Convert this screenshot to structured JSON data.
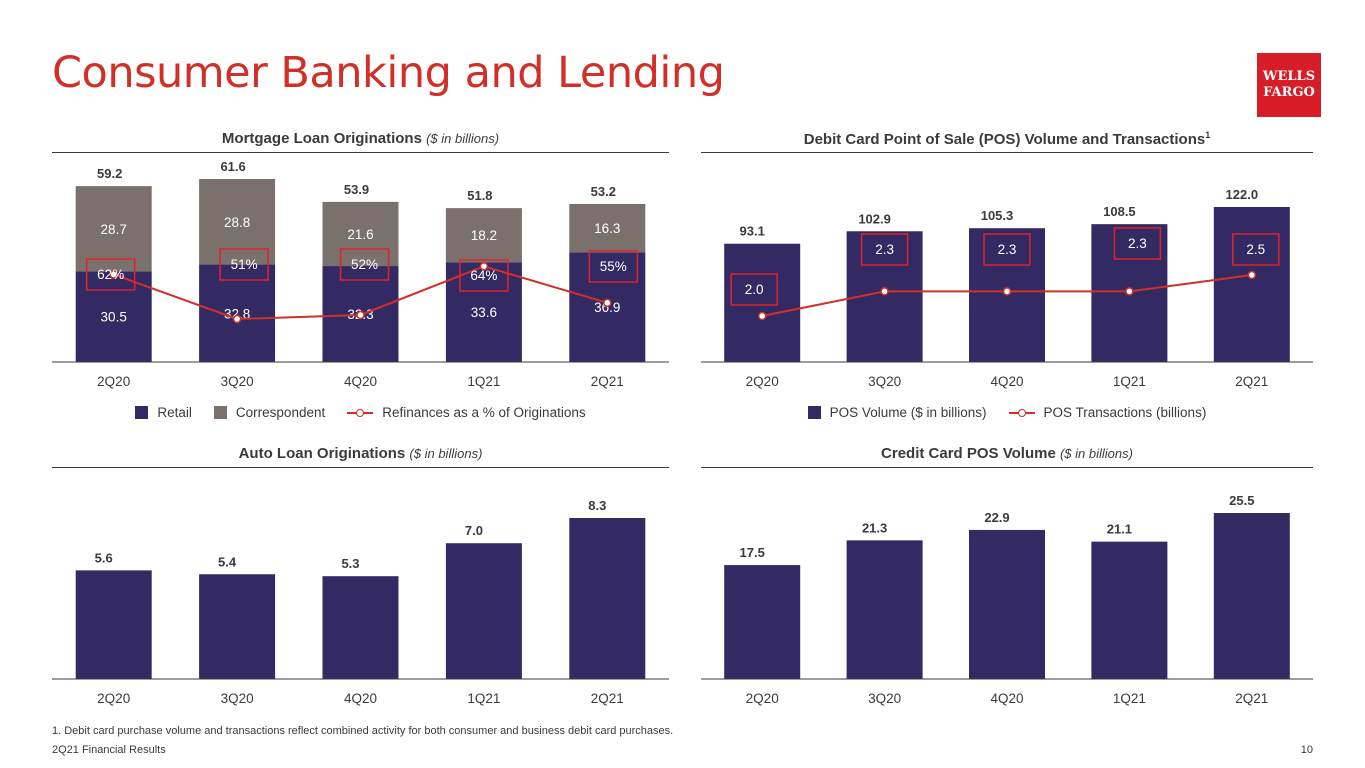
{
  "page": {
    "title": "Consumer Banking and Lending",
    "logo_line1": "WELLS",
    "logo_line2": "FARGO",
    "footnote": "1. Debit card purchase volume and transactions reflect combined activity for both consumer and business debit card purchases.",
    "footer_left": "2Q21 Financial Results",
    "page_number": "10"
  },
  "colors": {
    "retail": "#332a63",
    "correspondent": "#7a706c",
    "line": "#d03027",
    "highlight_box": "#e0232b",
    "title": "#d03027",
    "logo": "#d71e28"
  },
  "chart_data": [
    {
      "id": "mortgage",
      "type": "bar",
      "stacked": true,
      "title": "Mortgage Loan Originations",
      "title_unit": "($ in billions)",
      "categories": [
        "2Q20",
        "3Q20",
        "4Q20",
        "1Q21",
        "2Q21"
      ],
      "series": [
        {
          "name": "Retail",
          "values": [
            30.5,
            32.8,
            32.3,
            33.6,
            36.9
          ],
          "labels": [
            "30.5",
            "32.8",
            "32.3",
            "33.6",
            "36.9"
          ]
        },
        {
          "name": "Correspondent",
          "values": [
            28.7,
            28.8,
            21.6,
            18.2,
            16.3
          ],
          "labels": [
            "28.7",
            "28.8",
            "21.6",
            "18.2",
            "16.3"
          ]
        }
      ],
      "totals": [
        "59.2",
        "61.6",
        "53.9",
        "51.8",
        "53.2"
      ],
      "line": {
        "name": "Refinances as a % of Originations",
        "values": [
          62,
          51,
          52,
          64,
          55
        ],
        "labels": [
          "62%",
          "51%",
          "52%",
          "64%",
          "55%"
        ]
      },
      "legend_position": "bottom",
      "grid": false
    },
    {
      "id": "debit",
      "type": "bar",
      "title": "Debit Card Point of Sale (POS) Volume and Transactions",
      "title_superscript": "1",
      "categories": [
        "2Q20",
        "3Q20",
        "4Q20",
        "1Q21",
        "2Q21"
      ],
      "series": [
        {
          "name": "POS Volume ($ in billions)",
          "values": [
            93.1,
            102.9,
            105.3,
            108.5,
            122.0
          ],
          "labels": [
            "93.1",
            "102.9",
            "105.3",
            "108.5",
            "122.0"
          ]
        }
      ],
      "line": {
        "name": "POS Transactions (billions)",
        "values": [
          2.0,
          2.3,
          2.3,
          2.3,
          2.5
        ],
        "labels": [
          "2.0",
          "2.3",
          "2.3",
          "2.3",
          "2.5"
        ]
      },
      "legend_position": "bottom",
      "grid": false
    },
    {
      "id": "auto",
      "type": "bar",
      "title": "Auto Loan Originations",
      "title_unit": "($ in billions)",
      "categories": [
        "2Q20",
        "3Q20",
        "4Q20",
        "1Q21",
        "2Q21"
      ],
      "series": [
        {
          "name": "",
          "values": [
            5.6,
            5.4,
            5.3,
            7.0,
            8.3
          ],
          "labels": [
            "5.6",
            "5.4",
            "5.3",
            "7.0",
            "8.3"
          ]
        }
      ],
      "grid": false
    },
    {
      "id": "credit",
      "type": "bar",
      "title": "Credit Card POS Volume",
      "title_unit": "($ in billions)",
      "categories": [
        "2Q20",
        "3Q20",
        "4Q20",
        "1Q21",
        "2Q21"
      ],
      "series": [
        {
          "name": "",
          "values": [
            17.5,
            21.3,
            22.9,
            21.1,
            25.5
          ],
          "labels": [
            "17.5",
            "21.3",
            "22.9",
            "21.1",
            "25.5"
          ]
        }
      ],
      "grid": false
    }
  ]
}
